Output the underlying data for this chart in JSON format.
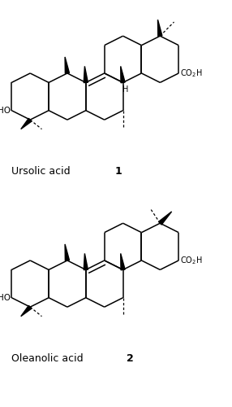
{
  "background_color": "#ffffff",
  "line_color": "#000000",
  "label1": "Ursolic acid ",
  "label1_bold": "1",
  "label2": "Oleanolic acid ",
  "label2_bold": "2",
  "figsize": [
    2.86,
    5.0
  ],
  "dpi": 100
}
